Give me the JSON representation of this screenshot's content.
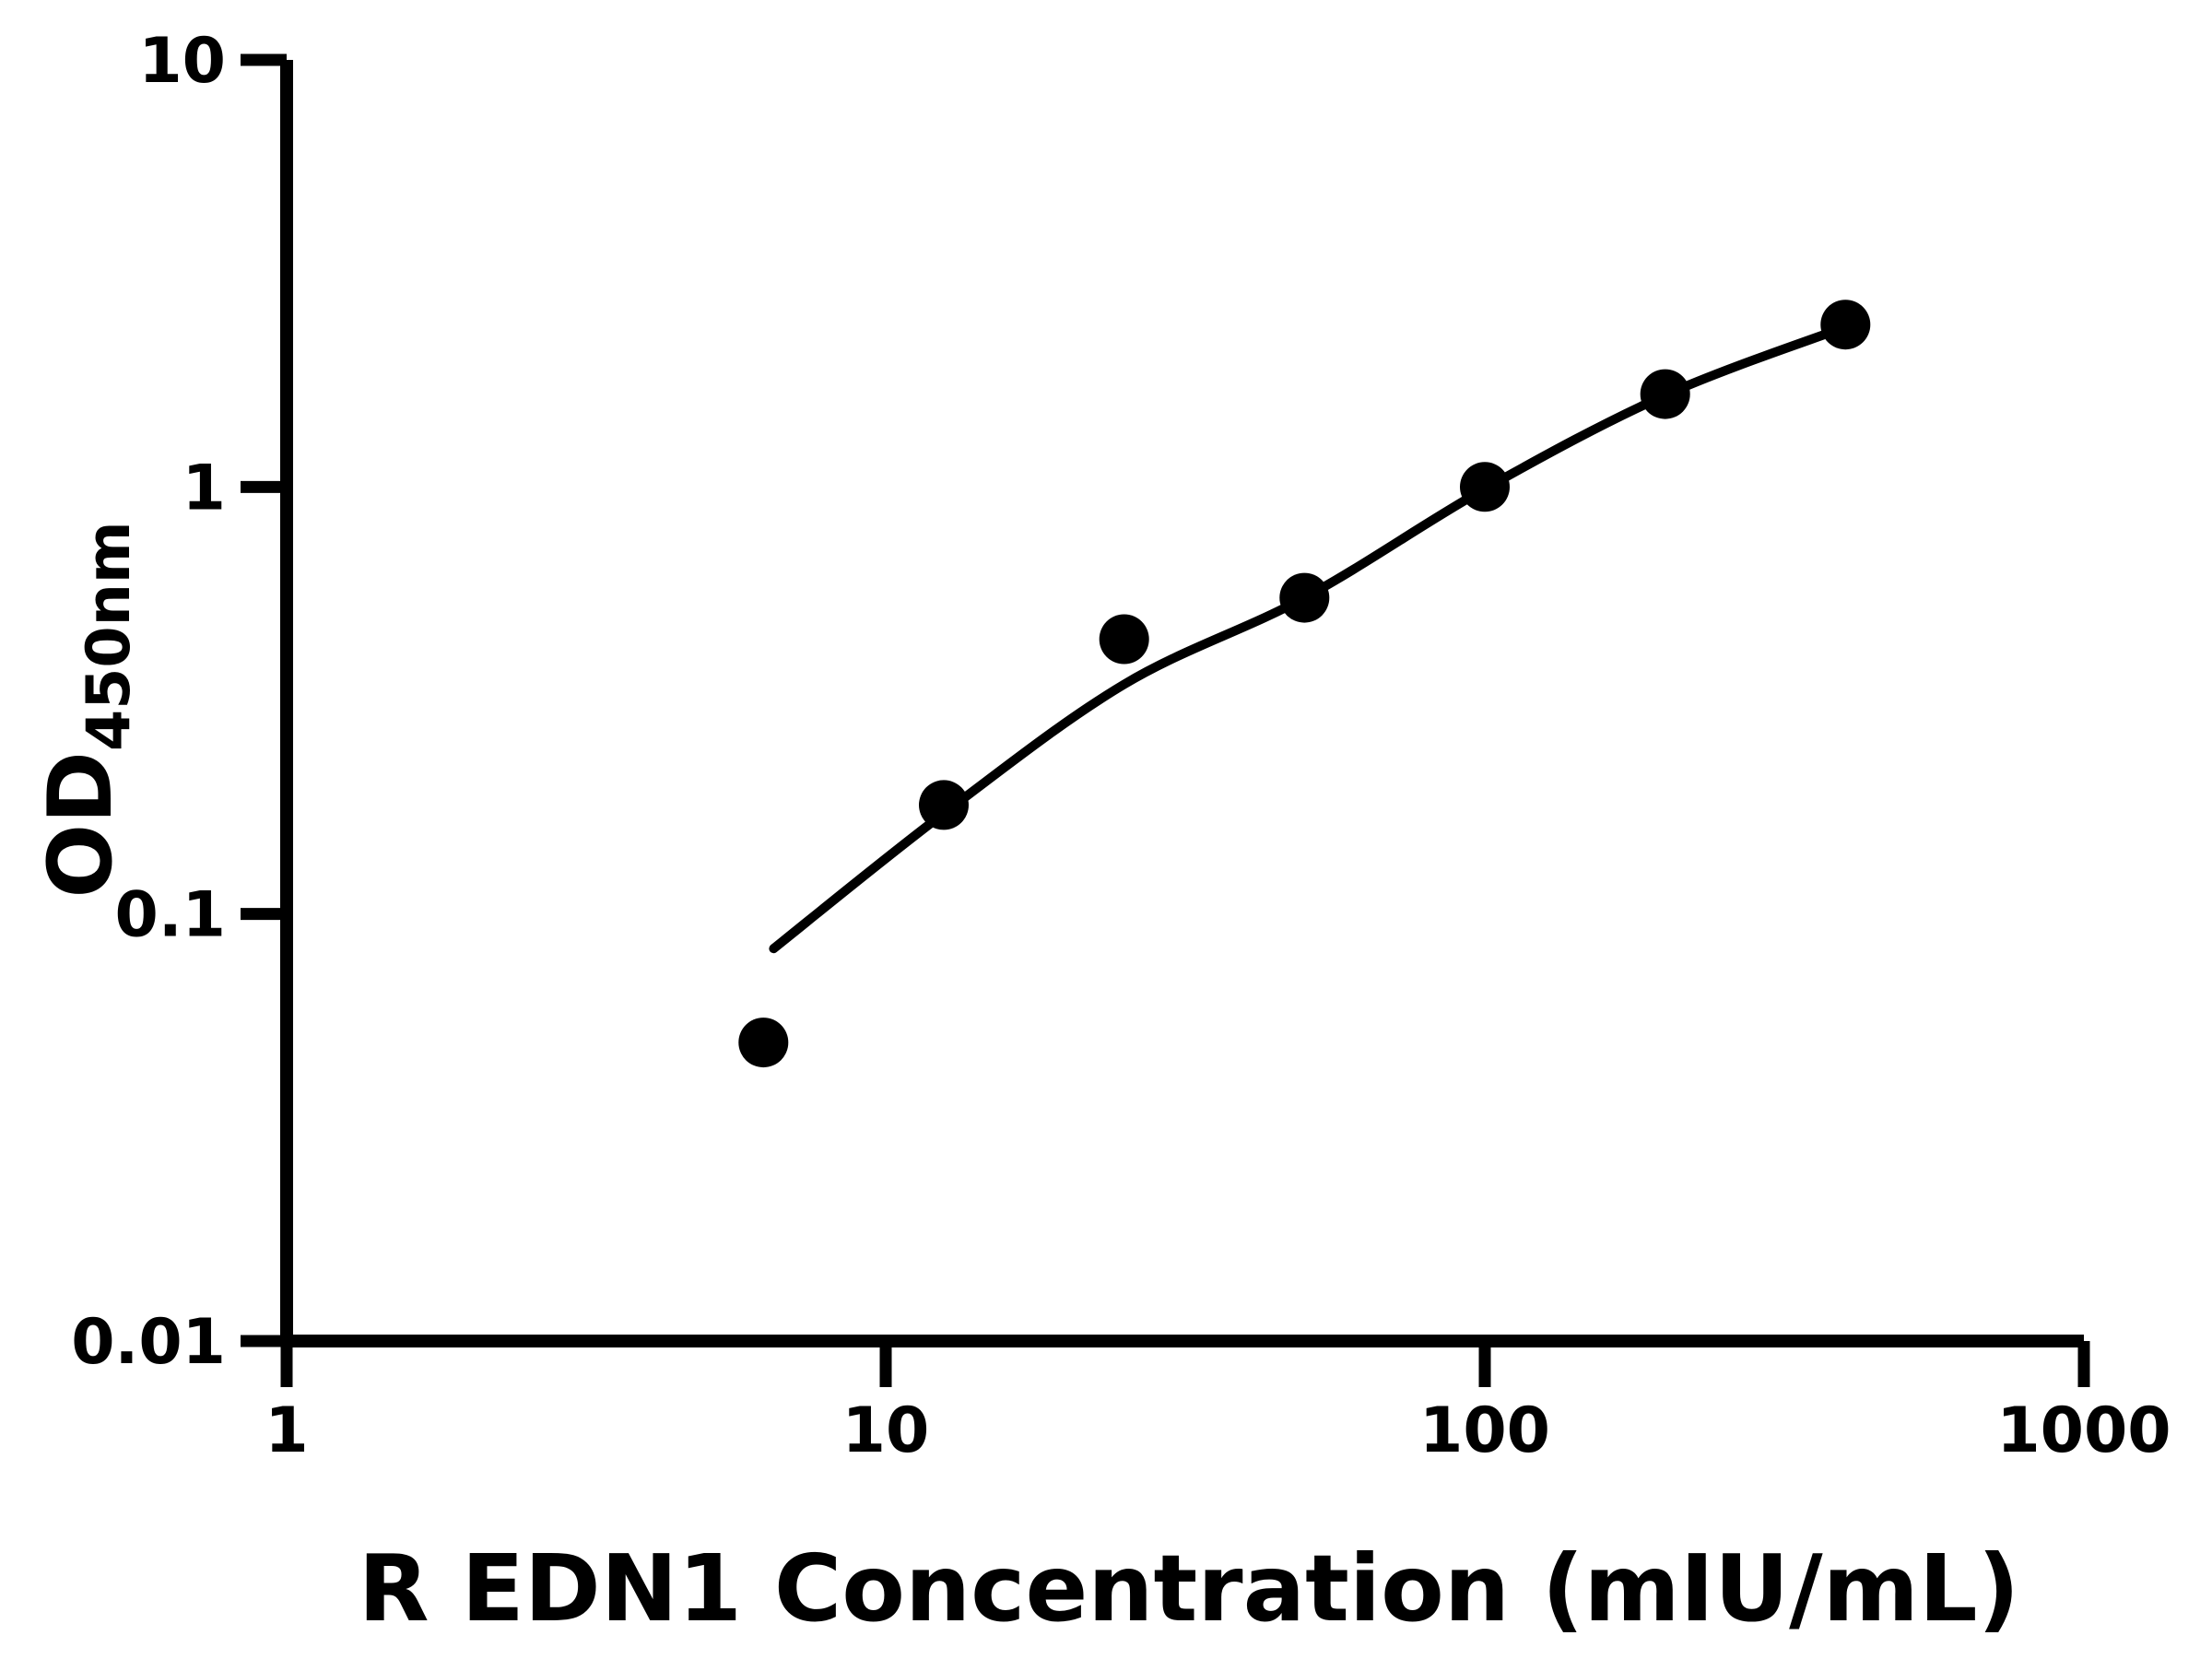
{
  "chart_data": {
    "type": "scatter",
    "title": "",
    "xlabel": "R EDN1 Concentration (mIU/mL)",
    "ylabel": "OD450nm",
    "ylabel_base": "OD",
    "ylabel_subscript": "450nm",
    "x_scale": "log10",
    "y_scale": "log10",
    "xlim": [
      1,
      1000
    ],
    "ylim": [
      0.01,
      10
    ],
    "x_ticks": [
      1,
      10,
      100,
      1000
    ],
    "x_tick_labels": [
      "1",
      "10",
      "100",
      "1000"
    ],
    "y_ticks": [
      10,
      1,
      0.1,
      0.01
    ],
    "y_tick_labels": [
      "10",
      "1",
      "0.1",
      "0.01"
    ],
    "grid": false,
    "legend": "none",
    "marker_color": "#000000",
    "line_color": "#000000",
    "background_color": "#ffffff",
    "series": [
      {
        "name": "standard-points",
        "type": "scatter",
        "marker": "filled-circle",
        "x": [
          6.25,
          12.5,
          25,
          50,
          100,
          200,
          400
        ],
        "y": [
          0.05,
          0.18,
          0.44,
          0.55,
          1.0,
          1.65,
          2.4
        ]
      },
      {
        "name": "fitted-curve",
        "type": "line",
        "x": [
          6.5,
          12.5,
          25,
          50,
          100,
          200,
          400
        ],
        "y": [
          0.083,
          0.172,
          0.345,
          0.55,
          0.99,
          1.64,
          2.37
        ]
      }
    ]
  }
}
